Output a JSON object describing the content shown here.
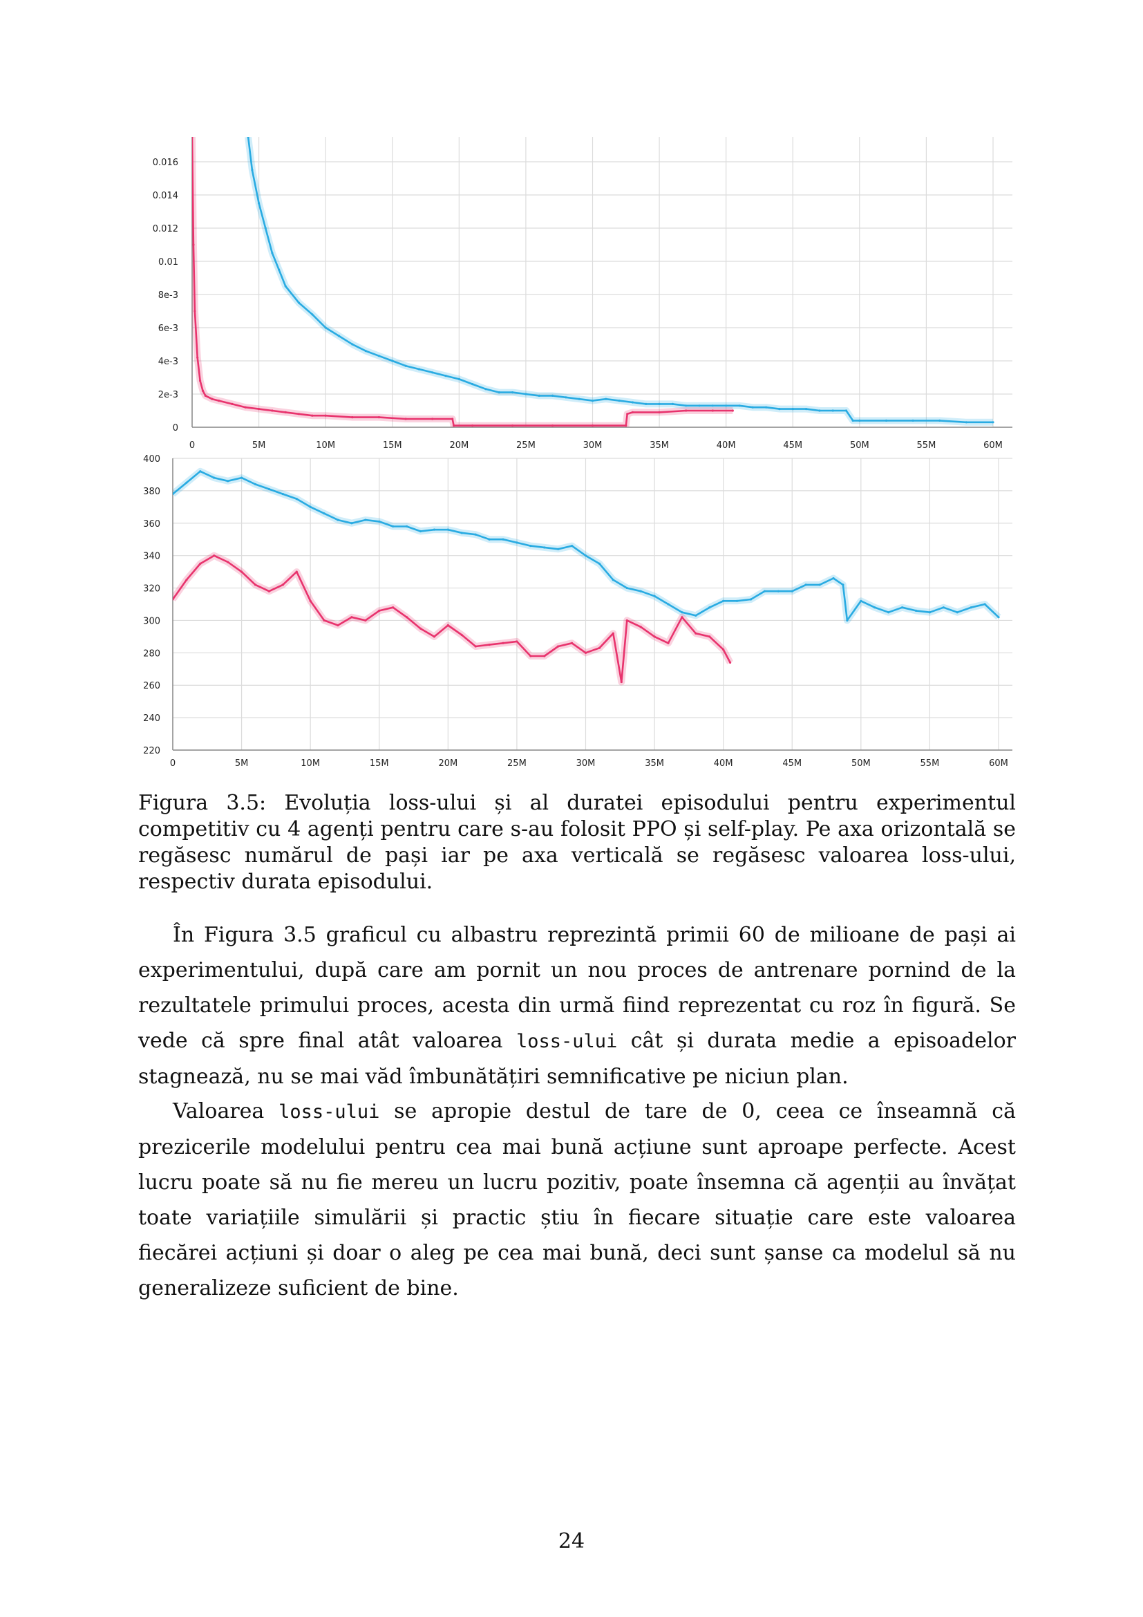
{
  "chart_data": [
    {
      "type": "line",
      "title": "",
      "xlabel": "",
      "ylabel": "",
      "x_ticks": [
        "0",
        "5M",
        "10M",
        "15M",
        "20M",
        "25M",
        "30M",
        "35M",
        "40M",
        "45M",
        "50M",
        "55M",
        "60M"
      ],
      "y_ticks": [
        "0",
        "2e-3",
        "4e-3",
        "6e-3",
        "8e-3",
        "0.01",
        "0.012",
        "0.014",
        "0.016"
      ],
      "xlim": [
        0,
        60
      ],
      "ylim": [
        0,
        0.0175
      ],
      "x_unit": "M steps",
      "grid": true,
      "legend": "none",
      "series": [
        {
          "color": "#29abe2",
          "points": [
            [
              4.2,
              0.0175
            ],
            [
              4.5,
              0.0155
            ],
            [
              5,
              0.0135
            ],
            [
              5.5,
              0.012
            ],
            [
              6,
              0.0105
            ],
            [
              6.5,
              0.0095
            ],
            [
              7,
              0.0085
            ],
            [
              8,
              0.0075
            ],
            [
              9,
              0.0068
            ],
            [
              10,
              0.006
            ],
            [
              11,
              0.0055
            ],
            [
              12,
              0.005
            ],
            [
              13,
              0.0046
            ],
            [
              14,
              0.0043
            ],
            [
              15,
              0.004
            ],
            [
              16,
              0.0037
            ],
            [
              17,
              0.0035
            ],
            [
              18,
              0.0033
            ],
            [
              19,
              0.0031
            ],
            [
              20,
              0.0029
            ],
            [
              21,
              0.0026
            ],
            [
              22,
              0.0023
            ],
            [
              23,
              0.0021
            ],
            [
              24,
              0.0021
            ],
            [
              25,
              0.002
            ],
            [
              26,
              0.0019
            ],
            [
              27,
              0.0019
            ],
            [
              28,
              0.0018
            ],
            [
              29,
              0.0017
            ],
            [
              30,
              0.0016
            ],
            [
              31,
              0.0017
            ],
            [
              32,
              0.0016
            ],
            [
              33,
              0.0015
            ],
            [
              34,
              0.0014
            ],
            [
              35,
              0.0014
            ],
            [
              36,
              0.0014
            ],
            [
              37,
              0.0013
            ],
            [
              38,
              0.0013
            ],
            [
              39,
              0.0013
            ],
            [
              40,
              0.0013
            ],
            [
              41,
              0.0013
            ],
            [
              42,
              0.0012
            ],
            [
              43,
              0.0012
            ],
            [
              44,
              0.0011
            ],
            [
              45,
              0.0011
            ],
            [
              46,
              0.0011
            ],
            [
              47,
              0.001
            ],
            [
              48,
              0.001
            ],
            [
              49,
              0.001
            ],
            [
              49.5,
              0.0004
            ],
            [
              50,
              0.0004
            ],
            [
              52,
              0.0004
            ],
            [
              54,
              0.0004
            ],
            [
              56,
              0.0004
            ],
            [
              58,
              0.0003
            ],
            [
              60,
              0.0003
            ]
          ]
        },
        {
          "color": "#e8336d",
          "points": [
            [
              0,
              0.0175
            ],
            [
              0.1,
              0.011
            ],
            [
              0.2,
              0.007
            ],
            [
              0.4,
              0.0042
            ],
            [
              0.6,
              0.0028
            ],
            [
              0.8,
              0.0022
            ],
            [
              1,
              0.0019
            ],
            [
              1.5,
              0.0017
            ],
            [
              2,
              0.0016
            ],
            [
              3,
              0.0014
            ],
            [
              4,
              0.0012
            ],
            [
              5,
              0.0011
            ],
            [
              6,
              0.001
            ],
            [
              7,
              0.0009
            ],
            [
              8,
              0.0008
            ],
            [
              9,
              0.0007
            ],
            [
              10,
              0.0007
            ],
            [
              12,
              0.0006
            ],
            [
              14,
              0.0006
            ],
            [
              16,
              0.0005
            ],
            [
              18,
              0.0005
            ],
            [
              19.5,
              0.0005
            ],
            [
              19.6,
              0.0001
            ],
            [
              21,
              0.0001
            ],
            [
              24,
              0.0001
            ],
            [
              27,
              0.0001
            ],
            [
              30,
              0.0001
            ],
            [
              32.5,
              0.0001
            ],
            [
              32.6,
              0.0008
            ],
            [
              33,
              0.0009
            ],
            [
              35,
              0.0009
            ],
            [
              37,
              0.001
            ],
            [
              39,
              0.001
            ],
            [
              40.5,
              0.001
            ]
          ]
        }
      ]
    },
    {
      "type": "line",
      "title": "",
      "xlabel": "",
      "ylabel": "",
      "x_ticks": [
        "0",
        "5M",
        "10M",
        "15M",
        "20M",
        "25M",
        "30M",
        "35M",
        "40M",
        "45M",
        "50M",
        "55M",
        "60M"
      ],
      "y_ticks": [
        "220",
        "240",
        "260",
        "280",
        "300",
        "320",
        "340",
        "360",
        "380",
        "400"
      ],
      "xlim": [
        0,
        60
      ],
      "ylim": [
        220,
        400
      ],
      "x_unit": "M steps",
      "grid": true,
      "legend": "none",
      "series": [
        {
          "color": "#29abe2",
          "points": [
            [
              0,
              378
            ],
            [
              1,
              385
            ],
            [
              2,
              392
            ],
            [
              3,
              388
            ],
            [
              4,
              386
            ],
            [
              5,
              388
            ],
            [
              6,
              384
            ],
            [
              7,
              381
            ],
            [
              8,
              378
            ],
            [
              9,
              375
            ],
            [
              10,
              370
            ],
            [
              11,
              366
            ],
            [
              12,
              362
            ],
            [
              13,
              360
            ],
            [
              14,
              362
            ],
            [
              15,
              361
            ],
            [
              16,
              358
            ],
            [
              17,
              358
            ],
            [
              18,
              355
            ],
            [
              19,
              356
            ],
            [
              20,
              356
            ],
            [
              21,
              354
            ],
            [
              22,
              353
            ],
            [
              23,
              350
            ],
            [
              24,
              350
            ],
            [
              25,
              348
            ],
            [
              26,
              346
            ],
            [
              27,
              345
            ],
            [
              28,
              344
            ],
            [
              29,
              346
            ],
            [
              30,
              340
            ],
            [
              31,
              335
            ],
            [
              32,
              325
            ],
            [
              33,
              320
            ],
            [
              34,
              318
            ],
            [
              35,
              315
            ],
            [
              36,
              310
            ],
            [
              37,
              305
            ],
            [
              38,
              303
            ],
            [
              39,
              308
            ],
            [
              40,
              312
            ],
            [
              41,
              312
            ],
            [
              42,
              313
            ],
            [
              43,
              318
            ],
            [
              44,
              318
            ],
            [
              45,
              318
            ],
            [
              46,
              322
            ],
            [
              47,
              322
            ],
            [
              48,
              326
            ],
            [
              48.7,
              322
            ],
            [
              49,
              300
            ],
            [
              50,
              312
            ],
            [
              51,
              308
            ],
            [
              52,
              305
            ],
            [
              53,
              308
            ],
            [
              54,
              306
            ],
            [
              55,
              305
            ],
            [
              56,
              308
            ],
            [
              57,
              305
            ],
            [
              58,
              308
            ],
            [
              59,
              310
            ],
            [
              60,
              302
            ]
          ]
        },
        {
          "color": "#e8336d",
          "points": [
            [
              0,
              313
            ],
            [
              1,
              325
            ],
            [
              2,
              335
            ],
            [
              3,
              340
            ],
            [
              4,
              336
            ],
            [
              5,
              330
            ],
            [
              6,
              322
            ],
            [
              7,
              318
            ],
            [
              8,
              322
            ],
            [
              9,
              330
            ],
            [
              10,
              312
            ],
            [
              11,
              300
            ],
            [
              12,
              297
            ],
            [
              13,
              302
            ],
            [
              14,
              300
            ],
            [
              15,
              306
            ],
            [
              16,
              308
            ],
            [
              17,
              302
            ],
            [
              18,
              295
            ],
            [
              19,
              290
            ],
            [
              20,
              297
            ],
            [
              21,
              291
            ],
            [
              22,
              284
            ],
            [
              23,
              285
            ],
            [
              24,
              286
            ],
            [
              25,
              287
            ],
            [
              26,
              278
            ],
            [
              27,
              278
            ],
            [
              28,
              284
            ],
            [
              29,
              286
            ],
            [
              30,
              280
            ],
            [
              31,
              283
            ],
            [
              32,
              292
            ],
            [
              32.6,
              262
            ],
            [
              33,
              300
            ],
            [
              34,
              296
            ],
            [
              35,
              290
            ],
            [
              36,
              286
            ],
            [
              37,
              302
            ],
            [
              38,
              292
            ],
            [
              39,
              290
            ],
            [
              40,
              282
            ],
            [
              40.5,
              274
            ]
          ]
        }
      ]
    }
  ],
  "caption": "Figura 3.5: Evoluția loss-ului și al duratei episodului pentru experimentul competitiv cu 4 agenți pentru care s-au folosit PPO și self-play. Pe axa orizontală se regăsesc numărul de pași iar pe axa verticală se regăsesc valoarea loss-ului, respectiv durata episodului.",
  "paragraph1": {
    "before": "În Figura 3.5 graficul cu albastru reprezintă primii 60 de milioane de pași ai experimentului, după care am pornit un nou proces de antrenare pornind de la rezultatele primului proces, acesta din urmă fiind reprezentat cu roz în figură. Se vede că spre final atât valoarea ",
    "code": "loss-ului",
    "after": " cât și durata medie a episoadelor stagnează, nu se mai văd îmbunătățiri semnificative pe niciun plan."
  },
  "paragraph2": {
    "before": "Valoarea ",
    "code": "loss-ului",
    "after": " se apropie destul de tare de 0, ceea ce înseamnă că prezicerile modelului pentru cea mai bună acțiune sunt aproape perfecte. Acest lucru poate să nu fie mereu un lucru pozitiv, poate însemna că agenții au învățat toate variațiile simulării și practic știu în fiecare situație care este valoarea fiecărei acțiuni și doar o aleg pe cea mai bună, deci sunt șanse ca modelul să nu generalizeze suficient de bine."
  },
  "page_number": "24"
}
